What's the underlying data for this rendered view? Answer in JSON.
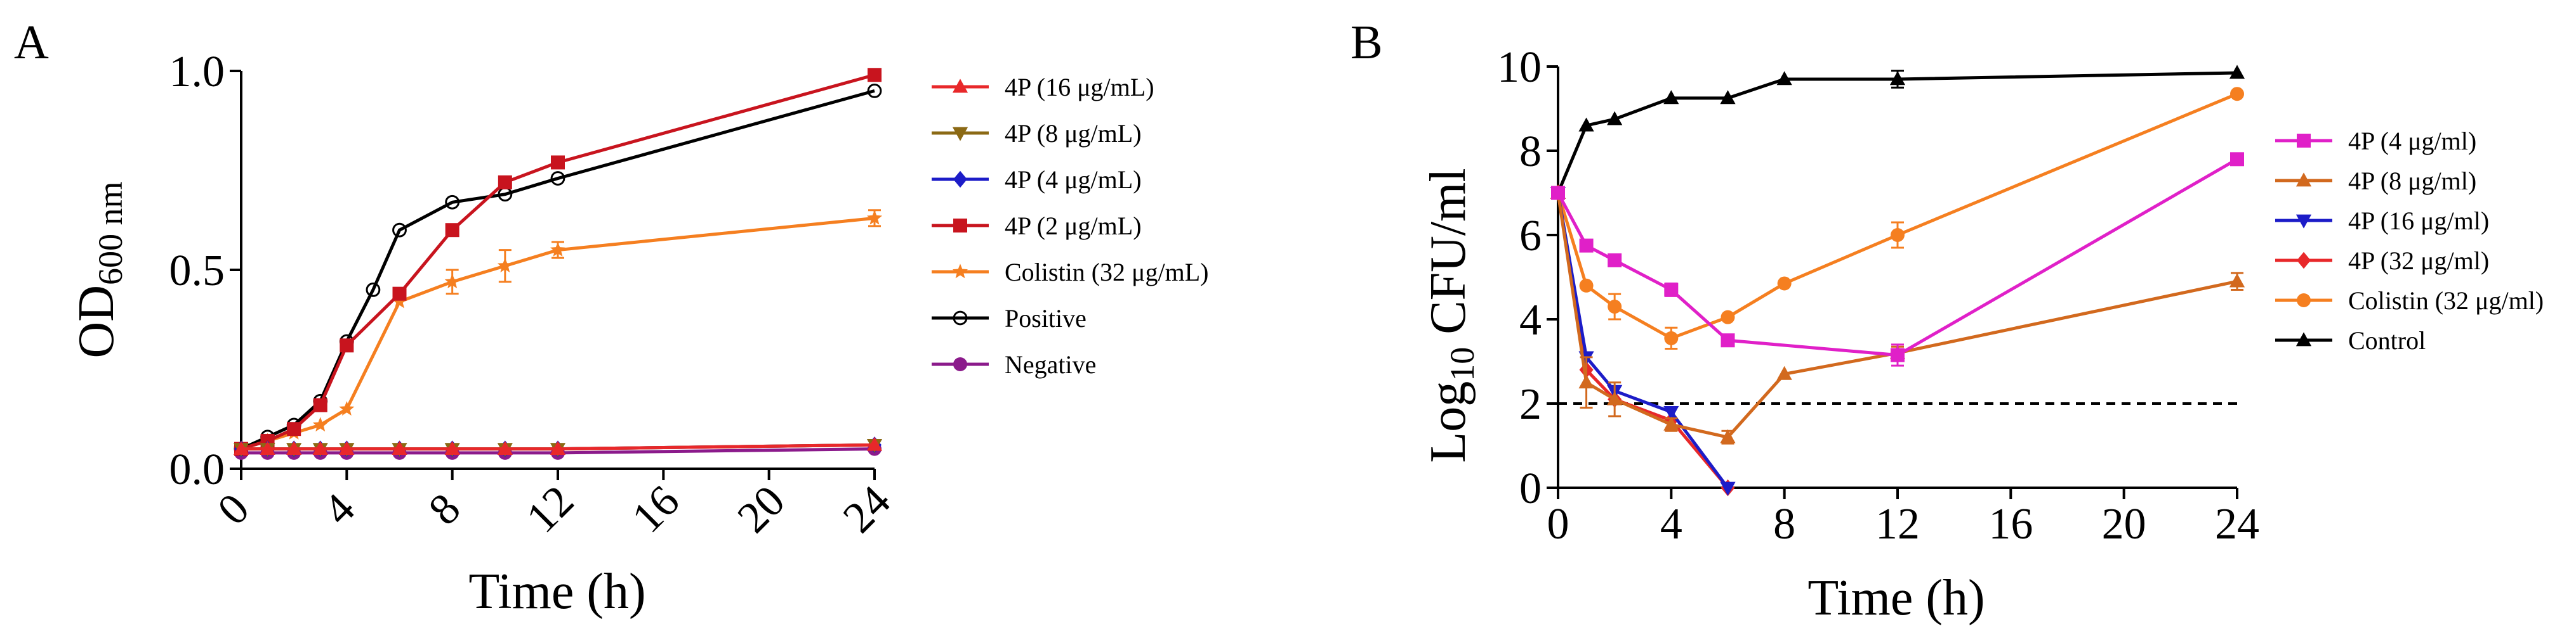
{
  "chart_data": [
    {
      "type": "line",
      "panel": "A",
      "xlabel": "Time (h)",
      "ylabel_main": "OD",
      "ylabel_sub": "600 nm",
      "xlim": [
        0,
        24
      ],
      "ylim": [
        0,
        1.0
      ],
      "x_ticks": [
        0,
        4,
        8,
        12,
        16,
        20,
        24
      ],
      "y_ticks": [
        0,
        0.5,
        1.0
      ],
      "x_tick_labels": [
        "0",
        "4",
        "8",
        "12",
        "16",
        "20",
        "24"
      ],
      "y_tick_labels": [
        "0.0",
        "0.5",
        "1.0"
      ],
      "legend_position": "right",
      "series": [
        {
          "name": "4P (16 μg/mL)",
          "color": "#e8282a",
          "marker": "triangle-up",
          "x": [
            0,
            1,
            2,
            3,
            4,
            6,
            8,
            10,
            12,
            24
          ],
          "y": [
            0.05,
            0.05,
            0.05,
            0.05,
            0.05,
            0.05,
            0.05,
            0.05,
            0.05,
            0.06
          ]
        },
        {
          "name": "4P (8 μg/mL)",
          "color": "#8b6914",
          "marker": "triangle-down",
          "x": [
            0,
            1,
            2,
            3,
            4,
            6,
            8,
            10,
            12,
            24
          ],
          "y": [
            0.05,
            0.05,
            0.05,
            0.05,
            0.05,
            0.05,
            0.05,
            0.05,
            0.05,
            0.06
          ]
        },
        {
          "name": "4P (4 μg/mL)",
          "color": "#1c1cc8",
          "marker": "diamond",
          "x": [
            0,
            1,
            2,
            3,
            4,
            6,
            8,
            10,
            12,
            24
          ],
          "y": [
            0.05,
            0.05,
            0.05,
            0.05,
            0.05,
            0.05,
            0.05,
            0.05,
            0.05,
            0.06
          ]
        },
        {
          "name": "4P (2 μg/mL)",
          "color": "#c8141e",
          "marker": "square",
          "x": [
            0,
            1,
            2,
            3,
            4,
            6,
            8,
            10,
            12,
            24
          ],
          "y": [
            0.05,
            0.07,
            0.1,
            0.16,
            0.31,
            0.44,
            0.6,
            0.72,
            0.77,
            0.99
          ]
        },
        {
          "name": "Colistin (32 μg/mL)",
          "color": "#f57f20",
          "marker": "star",
          "x": [
            0,
            1,
            2,
            3,
            4,
            6,
            8,
            10,
            12,
            24
          ],
          "y": [
            0.05,
            0.07,
            0.09,
            0.11,
            0.15,
            0.42,
            0.47,
            0.51,
            0.55,
            0.63
          ],
          "err": [
            0,
            0,
            0,
            0,
            0,
            0,
            0.03,
            0.04,
            0.02,
            0.02
          ]
        },
        {
          "name": "Positive",
          "color": "#000000",
          "marker": "open-circle",
          "x": [
            0,
            1,
            2,
            3,
            4,
            5,
            6,
            8,
            10,
            12,
            24
          ],
          "y": [
            0.05,
            0.08,
            0.11,
            0.17,
            0.32,
            0.45,
            0.6,
            0.67,
            0.69,
            0.73,
            0.95
          ]
        },
        {
          "name": "Negative",
          "color": "#8b1a8b",
          "marker": "circle",
          "x": [
            0,
            1,
            2,
            3,
            4,
            6,
            8,
            10,
            12,
            24
          ],
          "y": [
            0.04,
            0.04,
            0.04,
            0.04,
            0.04,
            0.04,
            0.04,
            0.04,
            0.04,
            0.05
          ]
        }
      ]
    },
    {
      "type": "line",
      "panel": "B",
      "xlabel": "Time (h)",
      "ylabel_main": "Log",
      "ylabel_sub": "10",
      "ylabel_rest": " CFU/ml",
      "xlim": [
        0,
        24
      ],
      "ylim": [
        0,
        10
      ],
      "x_ticks": [
        0,
        4,
        8,
        12,
        16,
        20,
        24
      ],
      "y_ticks": [
        0,
        2,
        4,
        6,
        8,
        10
      ],
      "x_tick_labels": [
        "0",
        "4",
        "8",
        "12",
        "16",
        "20",
        "24"
      ],
      "y_tick_labels": [
        "0",
        "2",
        "4",
        "6",
        "8",
        "10"
      ],
      "reference_line_y": 2,
      "legend_position": "right",
      "series": [
        {
          "name": "4P (4 μg/ml)",
          "color": "#e020c8",
          "marker": "square",
          "x": [
            0,
            1,
            2,
            4,
            6,
            12,
            24
          ],
          "y": [
            7.0,
            5.75,
            5.4,
            4.7,
            3.5,
            3.15,
            7.8
          ],
          "err": [
            0,
            0,
            0,
            0.15,
            0,
            0.25,
            0
          ]
        },
        {
          "name": "4P (8 μg/ml)",
          "color": "#d2691e",
          "marker": "triangle-up",
          "x": [
            0,
            1,
            2,
            4,
            6,
            8,
            12,
            24
          ],
          "y": [
            7.0,
            2.5,
            2.1,
            1.5,
            1.2,
            2.7,
            3.2,
            4.9
          ],
          "err": [
            0,
            0.6,
            0.4,
            0.15,
            0.15,
            0,
            0.15,
            0.2
          ]
        },
        {
          "name": "4P (16 μg/ml)",
          "color": "#1c1cc8",
          "marker": "triangle-down",
          "x": [
            0,
            1,
            2,
            4,
            6
          ],
          "y": [
            7.0,
            3.1,
            2.3,
            1.8,
            0
          ]
        },
        {
          "name": "4P (32 μg/ml)",
          "color": "#e8282a",
          "marker": "diamond",
          "x": [
            0,
            1,
            2,
            4,
            6
          ],
          "y": [
            7.0,
            2.8,
            2.1,
            1.6,
            0
          ]
        },
        {
          "name": "Colistin (32 μg/ml)",
          "color": "#f57f20",
          "marker": "circle",
          "x": [
            0,
            1,
            2,
            4,
            6,
            8,
            12,
            24
          ],
          "y": [
            7.0,
            4.8,
            4.3,
            3.55,
            4.05,
            4.85,
            6.0,
            9.35
          ],
          "err": [
            0,
            0,
            0.3,
            0.25,
            0,
            0,
            0.3,
            0
          ]
        },
        {
          "name": "Control",
          "color": "#000000",
          "marker": "triangle-up",
          "x": [
            0,
            1,
            2,
            4,
            6,
            8,
            12,
            24
          ],
          "y": [
            7.0,
            8.6,
            8.75,
            9.25,
            9.25,
            9.7,
            9.7,
            9.85
          ],
          "err": [
            0,
            0,
            0,
            0,
            0,
            0,
            0.2,
            0
          ]
        }
      ]
    }
  ]
}
